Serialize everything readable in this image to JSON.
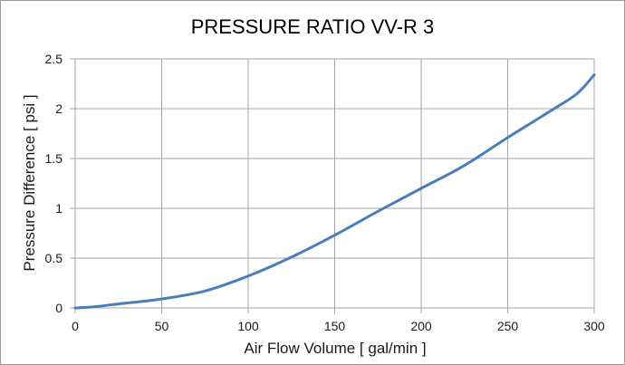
{
  "chart_data": {
    "type": "line",
    "title": "PRESSURE RATIO VV-R 3",
    "xlabel": "Air Flow Volume [ gal/min ]",
    "ylabel": "Pressure Difference [ psi ]",
    "xlim": [
      0,
      300
    ],
    "ylim": [
      0,
      2.5
    ],
    "x_ticks": [
      "0",
      "50",
      "100",
      "150",
      "200",
      "250",
      "300"
    ],
    "y_ticks": [
      "0",
      "0.5",
      "1",
      "1.5",
      "2",
      "2.5"
    ],
    "grid": true,
    "legend": "none",
    "series": [
      {
        "name": "VV-R 3",
        "color": "#4a7ebb",
        "x": [
          0,
          10,
          25,
          50,
          75,
          100,
          125,
          150,
          175,
          200,
          225,
          250,
          275,
          290,
          300
        ],
        "y": [
          0,
          0.01,
          0.04,
          0.09,
          0.17,
          0.32,
          0.51,
          0.73,
          0.97,
          1.2,
          1.43,
          1.71,
          1.98,
          2.15,
          2.34
        ]
      }
    ]
  }
}
